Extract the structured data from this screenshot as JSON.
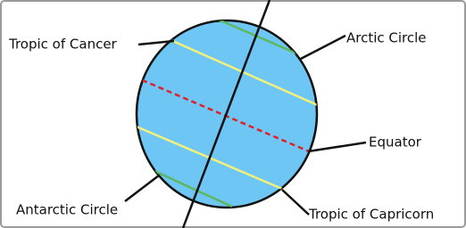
{
  "labels": {
    "tropic_of_cancer": "Tropic of Cancer",
    "arctic_circle": "Arctic Circle",
    "equator": "Equator",
    "antarctic_circle": "Antarctic Circle",
    "tropic_of_capricorn": "Tropic of Capricorn"
  }
}
